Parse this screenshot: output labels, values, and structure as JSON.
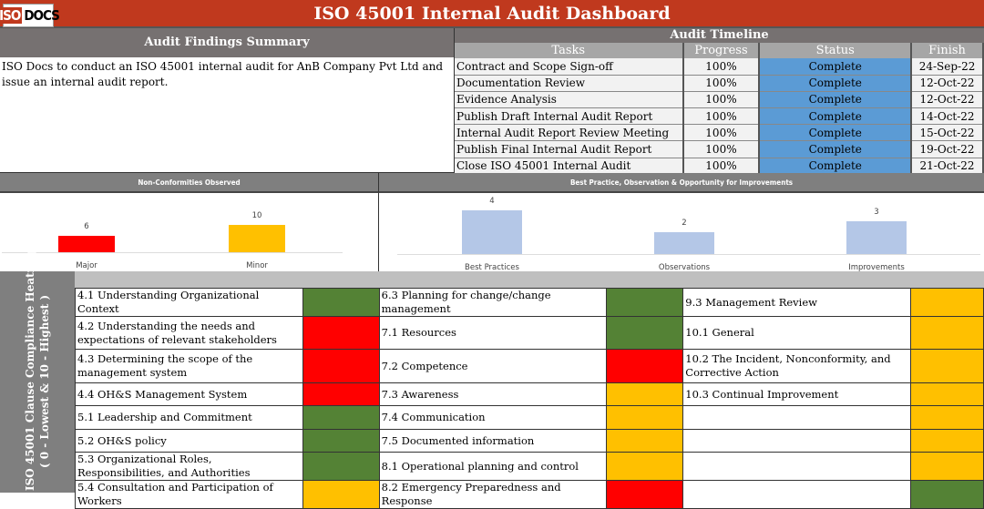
{
  "header": {
    "logo_left": "ISO",
    "logo_right": "DOCS",
    "title": "ISO 45001 Internal Audit Dashboard"
  },
  "summary": {
    "heading": "Audit Findings Summary",
    "text": "ISO Docs to conduct an ISO 45001 internal audit for AnB Company Pvt Ltd and issue an internal audit report."
  },
  "timeline": {
    "heading": "Audit Timeline",
    "columns": [
      "Tasks",
      "Progress",
      "Status",
      "Finish"
    ],
    "rows": [
      [
        "Contract and Scope Sign-off",
        "100%",
        "Complete",
        "24-Sep-22"
      ],
      [
        "Documentation Review",
        "100%",
        "Complete",
        "12-Oct-22"
      ],
      [
        "Evidence Analysis",
        "100%",
        "Complete",
        "12-Oct-22"
      ],
      [
        "Publish Draft Internal Audit Report",
        "100%",
        "Complete",
        "14-Oct-22"
      ],
      [
        "Internal Audit Report Review Meeting",
        "100%",
        "Complete",
        "15-Oct-22"
      ],
      [
        "Publish Final Internal Audit Report",
        "100%",
        "Complete",
        "19-Oct-22"
      ],
      [
        "Close ISO 45001 Internal Audit",
        "100%",
        "Complete",
        "21-Oct-22"
      ]
    ]
  },
  "chart_data": [
    {
      "type": "bar",
      "title": "Non-Conformities Observed",
      "categories": [
        "Major",
        "Minor"
      ],
      "values": [
        6,
        10
      ],
      "colors": [
        "#ff0000",
        "#ffc000"
      ]
    },
    {
      "type": "bar",
      "title": "Best Practice, Observation & Opportunity for Improvements",
      "categories": [
        "Best Practices",
        "Observations",
        "Improvements"
      ],
      "values": [
        4,
        2,
        3
      ],
      "colors": [
        "#b4c7e7",
        "#b4c7e7",
        "#b4c7e7"
      ]
    }
  ],
  "heatmap": {
    "title": "ISO 45001 Clause Compliance Heatmap",
    "subtitle": "( 0 - Lowest & 10 - Highest )",
    "colors": {
      "green": "#548235",
      "red": "#ff0000",
      "yellow": "#ffc000"
    },
    "rows": [
      [
        [
          "4.1 Understanding Organizational Context",
          "green"
        ],
        [
          "6.3 Planning for change/change management",
          "green"
        ],
        [
          "9.3  Management Review",
          "yellow"
        ]
      ],
      [
        [
          "4.2 Understanding the needs and expectations of relevant stakeholders",
          "red"
        ],
        [
          "7.1 Resources",
          "green"
        ],
        [
          "10.1 General",
          "yellow"
        ]
      ],
      [
        [
          "4.3 Determining the scope of the management system",
          "red"
        ],
        [
          "7.2 Competence",
          "red"
        ],
        [
          "10.2  The Incident, Nonconformity, and Corrective Action",
          "yellow"
        ]
      ],
      [
        [
          "4.4 OH&S Management System",
          "red"
        ],
        [
          "7.3 Awareness",
          "yellow"
        ],
        [
          "10.3  Continual Improvement",
          "yellow"
        ]
      ],
      [
        [
          "5.1 Leadership and Commitment",
          "green"
        ],
        [
          "7.4 Communication",
          "yellow"
        ],
        [
          "",
          "yellow"
        ]
      ],
      [
        [
          "5.2 OH&S policy",
          "green"
        ],
        [
          "7.5 Documented information",
          "yellow"
        ],
        [
          "",
          "yellow"
        ]
      ],
      [
        [
          "5.3 Organizational Roles, Responsibilities, and Authorities",
          "green"
        ],
        [
          "8.1 Operational planning and control",
          "yellow"
        ],
        [
          "",
          "yellow"
        ]
      ],
      [
        [
          "5.4  Consultation and Participation of Workers",
          "yellow"
        ],
        [
          "8.2 Emergency Preparedness and Response",
          "red"
        ],
        [
          "",
          "green"
        ]
      ]
    ]
  }
}
